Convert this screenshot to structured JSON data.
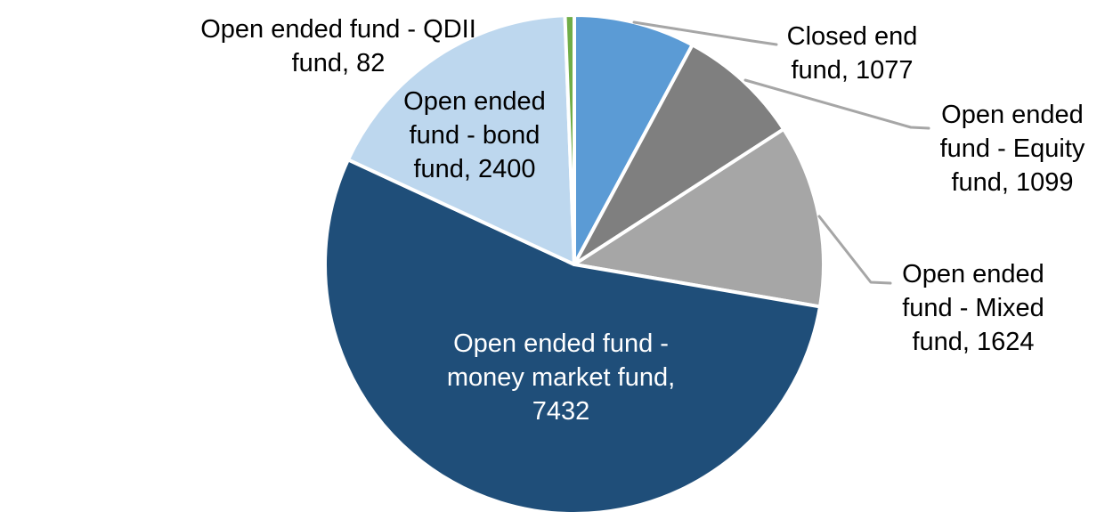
{
  "chart_data": {
    "type": "pie",
    "title": "",
    "total": 13714,
    "start_angle_deg": 0,
    "direction": "clockwise",
    "legend": "none",
    "label_format": "name, value",
    "slices": [
      {
        "label": "Closed end fund",
        "value": 1077,
        "color": "#5b9bd5"
      },
      {
        "label": "Open ended fund - Equity fund",
        "value": 1099,
        "color": "#7f7f7f"
      },
      {
        "label": "Open ended fund - Mixed fund",
        "value": 1624,
        "color": "#a6a6a6"
      },
      {
        "label": "Open ended fund - money market fund",
        "value": 7432,
        "color": "#1f4e79"
      },
      {
        "label": "Open ended fund - bond fund",
        "value": 2400,
        "color": "#bdd7ee"
      },
      {
        "label": "Open ended fund - QDII fund",
        "value": 82,
        "color": "#70ad47"
      }
    ],
    "leader_line_color": "#a6a6a6"
  },
  "labels": {
    "qdii": {
      "lines": [
        "Open ended fund - QDII",
        "fund, 82"
      ]
    },
    "closed_end": {
      "lines": [
        "Closed end",
        "fund, 1077"
      ]
    },
    "equity": {
      "lines": [
        "Open ended",
        "fund - Equity",
        "fund, 1099"
      ]
    },
    "mixed": {
      "lines": [
        "Open ended",
        "fund - Mixed",
        "fund, 1624"
      ]
    },
    "bond": {
      "lines": [
        "Open ended",
        "fund - bond",
        "fund, 2400"
      ]
    },
    "money_market": {
      "lines": [
        "Open ended fund -",
        "money market fund,",
        "7432"
      ]
    }
  }
}
